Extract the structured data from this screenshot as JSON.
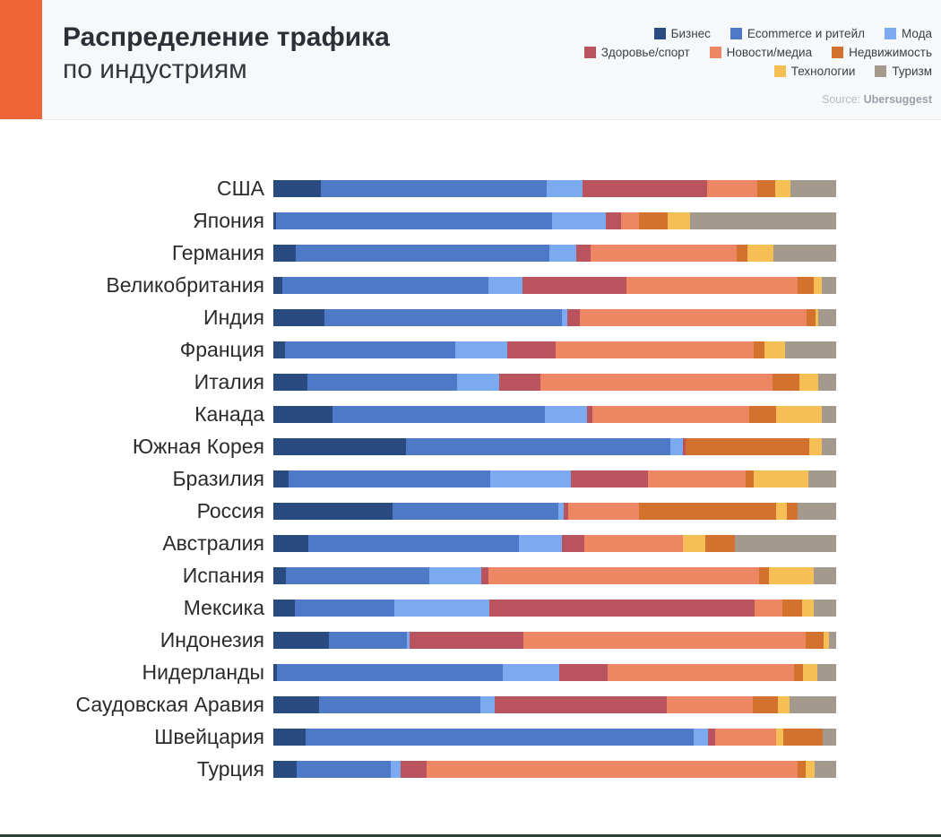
{
  "header": {
    "title_line1": "Распределение трафика",
    "title_line2": "по индустриям",
    "source_prefix": "Source:",
    "source_name": "Ubersuggest",
    "accent_color": "#f06537"
  },
  "legend": {
    "layout_rows": [
      [
        "business",
        "ecommerce",
        "fashion"
      ],
      [
        "health",
        "news",
        "realty"
      ],
      [
        "tech",
        "tourism"
      ]
    ]
  },
  "chart_data": {
    "type": "bar",
    "orientation": "horizontal-stacked",
    "unit": "percent",
    "xlim": [
      0,
      100
    ],
    "grid": false,
    "legend_position": "top-right",
    "series_labels": {
      "business": "Бизнес",
      "ecommerce": "Ecommerce и ритейл",
      "fashion": "Мода",
      "health": "Здоровье/спорт",
      "news": "Новости/медиа",
      "realty": "Недвижимость",
      "tech": "Технологии",
      "tourism": "Туризм"
    },
    "colors": {
      "business": "#2a4b7f",
      "ecommerce": "#4d79c6",
      "fashion": "#7caaf1",
      "health": "#b9545f",
      "news": "#ec8663",
      "realty": "#d3722f",
      "tech": "#f6bf55",
      "tourism": "#a4998d"
    },
    "rows": [
      {
        "country": "США",
        "segments": [
          [
            "business",
            8.5
          ],
          [
            "ecommerce",
            40
          ],
          [
            "fashion",
            6.5
          ],
          [
            "health",
            22
          ],
          [
            "news",
            9
          ],
          [
            "realty",
            3.2
          ],
          [
            "tech",
            2.7
          ],
          [
            "tourism",
            8.1
          ]
        ]
      },
      {
        "country": "Япония",
        "segments": [
          [
            "business",
            0.5
          ],
          [
            "ecommerce",
            49
          ],
          [
            "fashion",
            9.5
          ],
          [
            "health",
            2.8
          ],
          [
            "news",
            3.2
          ],
          [
            "realty",
            5
          ],
          [
            "tech",
            4
          ],
          [
            "tourism",
            26
          ]
        ]
      },
      {
        "country": "Германия",
        "segments": [
          [
            "business",
            4
          ],
          [
            "ecommerce",
            45
          ],
          [
            "fashion",
            4.8
          ],
          [
            "health",
            2.5
          ],
          [
            "news",
            26
          ],
          [
            "realty",
            2
          ],
          [
            "tech",
            4.5
          ],
          [
            "tourism",
            11.2
          ]
        ]
      },
      {
        "country": "Великобритания",
        "segments": [
          [
            "business",
            1.6
          ],
          [
            "ecommerce",
            36.6
          ],
          [
            "fashion",
            6
          ],
          [
            "health",
            18.5
          ],
          [
            "news",
            30.4
          ],
          [
            "realty",
            3
          ],
          [
            "tech",
            1.3
          ],
          [
            "tourism",
            2.6
          ]
        ]
      },
      {
        "country": "Индия",
        "segments": [
          [
            "business",
            9
          ],
          [
            "ecommerce",
            42.3
          ],
          [
            "fashion",
            1
          ],
          [
            "health",
            2.2
          ],
          [
            "news",
            40.3
          ],
          [
            "realty",
            1.6
          ],
          [
            "tech",
            0.5
          ],
          [
            "tourism",
            3.1
          ]
        ]
      },
      {
        "country": "Франция",
        "segments": [
          [
            "business",
            2
          ],
          [
            "ecommerce",
            30.4
          ],
          [
            "fashion",
            9.1
          ],
          [
            "health",
            8.6
          ],
          [
            "news",
            35.2
          ],
          [
            "realty",
            1.9
          ],
          [
            "tech",
            3.7
          ],
          [
            "tourism",
            9.1
          ]
        ]
      },
      {
        "country": "Италия",
        "segments": [
          [
            "business",
            6
          ],
          [
            "ecommerce",
            26.6
          ],
          [
            "fashion",
            7.6
          ],
          [
            "health",
            7.3
          ],
          [
            "news",
            41.2
          ],
          [
            "realty",
            4.8
          ],
          [
            "tech",
            3.3
          ],
          [
            "tourism",
            3.2
          ]
        ]
      },
      {
        "country": "Канада",
        "segments": [
          [
            "business",
            10.5
          ],
          [
            "ecommerce",
            37.7
          ],
          [
            "fashion",
            7.5
          ],
          [
            "health",
            1
          ],
          [
            "news",
            27.8
          ],
          [
            "realty",
            4.9
          ],
          [
            "tech",
            8.1
          ],
          [
            "tourism",
            2.5
          ]
        ]
      },
      {
        "country": "Южная Корея",
        "segments": [
          [
            "business",
            23.5
          ],
          [
            "ecommerce",
            47.1
          ],
          [
            "fashion",
            2.2
          ],
          [
            "health",
            0.4
          ],
          [
            "realty",
            22.1
          ],
          [
            "tech",
            2.1
          ],
          [
            "tourism",
            2.6
          ]
        ]
      },
      {
        "country": "Бразилия",
        "segments": [
          [
            "business",
            2.7
          ],
          [
            "ecommerce",
            35.8
          ],
          [
            "fashion",
            14.3
          ],
          [
            "health",
            13.8
          ],
          [
            "news",
            17.4
          ],
          [
            "realty",
            1.4
          ],
          [
            "tech",
            9.7
          ],
          [
            "tourism",
            4.9
          ]
        ]
      },
      {
        "country": "Россия",
        "segments": [
          [
            "business",
            21.2
          ],
          [
            "ecommerce",
            29.4
          ],
          [
            "fashion",
            1
          ],
          [
            "health",
            0.8
          ],
          [
            "news",
            12.6
          ],
          [
            "realty",
            24.4
          ],
          [
            "tech",
            1.8
          ],
          [
            "realty",
            1.9
          ],
          [
            "tourism",
            6.9
          ]
        ]
      },
      {
        "country": "Австралия",
        "segments": [
          [
            "business",
            6.2
          ],
          [
            "ecommerce",
            37.4
          ],
          [
            "fashion",
            7.6
          ],
          [
            "health",
            4
          ],
          [
            "news",
            17.5
          ],
          [
            "tech",
            4.1
          ],
          [
            "realty",
            5.2
          ],
          [
            "tourism",
            18
          ]
        ]
      },
      {
        "country": "Испания",
        "segments": [
          [
            "business",
            2.2
          ],
          [
            "ecommerce",
            25.5
          ],
          [
            "fashion",
            9.2
          ],
          [
            "health",
            1.3
          ],
          [
            "news",
            48.1
          ],
          [
            "realty",
            1.8
          ],
          [
            "tech",
            8
          ],
          [
            "tourism",
            3.9
          ]
        ]
      },
      {
        "country": "Мексика",
        "segments": [
          [
            "business",
            3.8
          ],
          [
            "ecommerce",
            17.7
          ],
          [
            "fashion",
            16.9
          ],
          [
            "health",
            47.1
          ],
          [
            "news",
            4.9
          ],
          [
            "realty",
            3.5
          ],
          [
            "tech",
            2.2
          ],
          [
            "tourism",
            3.9
          ]
        ]
      },
      {
        "country": "Индонезия",
        "segments": [
          [
            "business",
            9.9
          ],
          [
            "ecommerce",
            13.9
          ],
          [
            "fashion",
            0.4
          ],
          [
            "health",
            20.2
          ],
          [
            "news",
            50.2
          ],
          [
            "realty",
            3.2
          ],
          [
            "tech",
            1
          ],
          [
            "tourism",
            1.2
          ]
        ]
      },
      {
        "country": "Нидерланды",
        "segments": [
          [
            "business",
            0.7
          ],
          [
            "ecommerce",
            40.1
          ],
          [
            "fashion",
            10
          ],
          [
            "health",
            8.6
          ],
          [
            "news",
            33.1
          ],
          [
            "realty",
            1.6
          ],
          [
            "tech",
            2.5
          ],
          [
            "tourism",
            3.4
          ]
        ]
      },
      {
        "country": "Саудовская Аравия",
        "segments": [
          [
            "business",
            8.1
          ],
          [
            "ecommerce",
            28.7
          ],
          [
            "fashion",
            2.5
          ],
          [
            "health",
            30.6
          ],
          [
            "news",
            15.3
          ],
          [
            "realty",
            4.5
          ],
          [
            "tech",
            2
          ],
          [
            "tourism",
            8.3
          ]
        ]
      },
      {
        "country": "Швейцария",
        "segments": [
          [
            "business",
            5.7
          ],
          [
            "ecommerce",
            69
          ],
          [
            "fashion",
            2.5
          ],
          [
            "health",
            1.3
          ],
          [
            "news",
            10.8
          ],
          [
            "tech",
            1.3
          ],
          [
            "realty",
            7
          ],
          [
            "tourism",
            2.4
          ]
        ]
      },
      {
        "country": "Турция",
        "segments": [
          [
            "business",
            4.2
          ],
          [
            "ecommerce",
            16.7
          ],
          [
            "fashion",
            1.7
          ],
          [
            "health",
            4.6
          ],
          [
            "news",
            66
          ],
          [
            "realty",
            1.4
          ],
          [
            "tech",
            1.6
          ],
          [
            "tourism",
            3.8
          ]
        ]
      }
    ]
  }
}
